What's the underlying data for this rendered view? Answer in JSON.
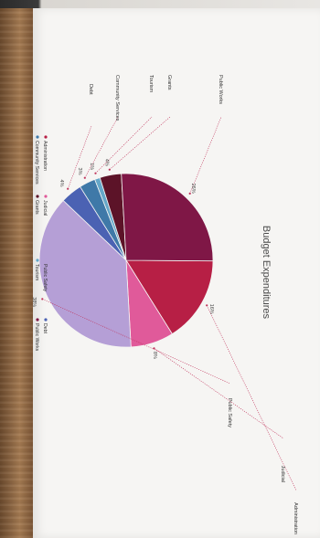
{
  "chart_data": {
    "type": "pie",
    "title": "Budget Expenditures",
    "slices": [
      {
        "name": "Administration",
        "value": 16,
        "color": "#b71f45",
        "label": "16%"
      },
      {
        "name": "Judicial",
        "value": 8,
        "color": "#e05a9a",
        "label": "8%"
      },
      {
        "name": "Public Safety",
        "value": 38,
        "color": "#b59fd6",
        "label": "38%"
      },
      {
        "name": "Debt",
        "value": 4,
        "color": "#4b62b3",
        "label": "4%"
      },
      {
        "name": "Community Services",
        "value": 3,
        "color": "#3f79a8",
        "label": "3%"
      },
      {
        "name": "Tourism",
        "value": 1,
        "color": "#65a7c8",
        "label": "1%"
      },
      {
        "name": "Grants",
        "value": 4,
        "color": "#5c1328",
        "label": "4%"
      },
      {
        "name": "Public Works",
        "value": 26,
        "color": "#7f1746",
        "label": "26%"
      }
    ],
    "legend": [
      [
        "Administration",
        "Judicial",
        "Public Safety",
        "Debt"
      ],
      [
        "Community Services",
        "Grants",
        "Tourism",
        "Public Works"
      ]
    ],
    "legend_position": "bottom",
    "orientation": "rotated 90° clockwise"
  }
}
